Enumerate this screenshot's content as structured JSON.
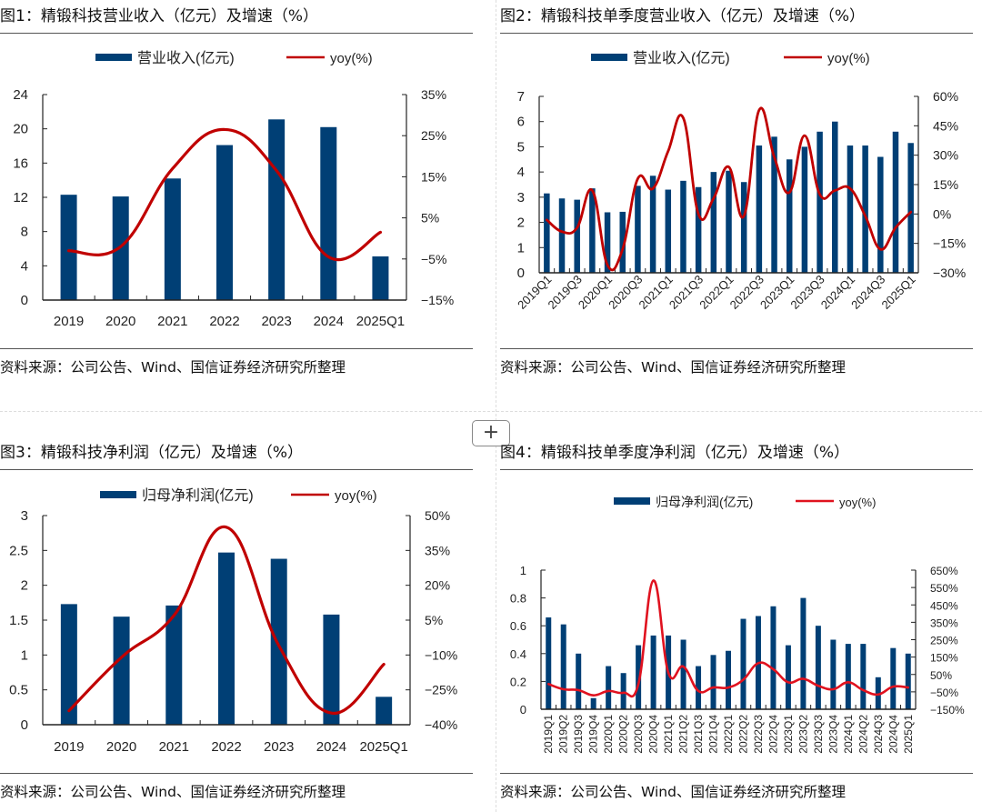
{
  "source_note": "资料来源：公司公告、Wind、国信证券经济研究所整理",
  "add_button_label": "+",
  "colors": {
    "bar": "#003f75",
    "line": "#c00000",
    "line_alt": "#e0121f",
    "axis": "#222222"
  },
  "chart_data": [
    {
      "id": "fig1",
      "type": "bar+line",
      "title": "图1：精锻科技营业收入（亿元）及增速（%）",
      "legend": [
        "营业收入(亿元)",
        "yoy(%)"
      ],
      "legend_position": "top-center",
      "categories": [
        "2019",
        "2020",
        "2021",
        "2022",
        "2023",
        "2024",
        "2025Q1"
      ],
      "series": [
        {
          "name": "营业收入(亿元)",
          "axis": "left",
          "type": "bar",
          "values": [
            12.3,
            12.1,
            14.2,
            18.1,
            21.1,
            20.2,
            5.1
          ]
        },
        {
          "name": "yoy(%)",
          "axis": "right",
          "type": "line",
          "values": [
            -3.0,
            -2.0,
            17.0,
            26.5,
            16.5,
            -4.5,
            1.5
          ]
        }
      ],
      "ylim_left": [
        0,
        24
      ],
      "yticks_left": [
        "0",
        "4",
        "8",
        "12",
        "16",
        "20",
        "24"
      ],
      "ylim_right": [
        -15,
        35
      ],
      "yticks_right": [
        "-15%",
        "-5%",
        "5%",
        "15%",
        "25%",
        "35%"
      ],
      "xlabel_rotation": "none"
    },
    {
      "id": "fig2",
      "type": "bar+line",
      "title": "图2：精锻科技单季度营业收入（亿元）及增速（%）",
      "legend": [
        "营业收入(亿元)",
        "yoy(%)"
      ],
      "legend_position": "top-center",
      "categories": [
        "2019Q1",
        "2019Q2",
        "2019Q3",
        "2019Q4",
        "2020Q1",
        "2020Q2",
        "2020Q3",
        "2020Q4",
        "2021Q1",
        "2021Q2",
        "2021Q3",
        "2021Q4",
        "2022Q1",
        "2022Q2",
        "2022Q3",
        "2022Q4",
        "2023Q1",
        "2023Q2",
        "2023Q3",
        "2023Q4",
        "2024Q1",
        "2024Q2",
        "2024Q3",
        "2024Q4",
        "2025Q1"
      ],
      "tick_labels": [
        "2019Q1",
        "2019Q3",
        "2020Q1",
        "2020Q3",
        "2021Q1",
        "2021Q3",
        "2022Q1",
        "2022Q3",
        "2023Q1",
        "2023Q3",
        "2024Q1",
        "2024Q3",
        "2025Q1"
      ],
      "series": [
        {
          "name": "营业收入(亿元)",
          "axis": "left",
          "type": "bar",
          "values": [
            3.15,
            2.95,
            2.9,
            3.35,
            2.4,
            2.42,
            3.45,
            3.85,
            3.3,
            3.65,
            3.4,
            4.0,
            4.05,
            3.6,
            5.05,
            5.4,
            4.5,
            5.0,
            5.6,
            6.0,
            5.05,
            5.05,
            4.6,
            5.6,
            5.15
          ]
        },
        {
          "name": "yoy(%)",
          "axis": "right",
          "type": "line",
          "values": [
            -3,
            -9,
            -7,
            12,
            -26,
            -18,
            18,
            13,
            32,
            49,
            0,
            8,
            24,
            -1,
            53,
            29,
            11,
            40,
            10,
            12,
            13,
            -1,
            -18,
            -7,
            1
          ]
        }
      ],
      "ylim_left": [
        0,
        7
      ],
      "yticks_left": [
        "0",
        "1",
        "2",
        "3",
        "4",
        "5",
        "6",
        "7"
      ],
      "ylim_right": [
        -30,
        60
      ],
      "yticks_right": [
        "-30%",
        "-15%",
        "0%",
        "15%",
        "30%",
        "45%",
        "60%"
      ],
      "xlabel_rotation": "-45deg"
    },
    {
      "id": "fig3",
      "type": "bar+line",
      "title": "图3：精锻科技净利润（亿元）及增速（%）",
      "legend": [
        "归母净利润(亿元)",
        "yoy(%)"
      ],
      "legend_position": "top-center",
      "categories": [
        "2019",
        "2020",
        "2021",
        "2022",
        "2023",
        "2024",
        "2025Q1"
      ],
      "series": [
        {
          "name": "归母净利润(亿元)",
          "axis": "left",
          "type": "bar",
          "values": [
            1.73,
            1.55,
            1.71,
            2.47,
            2.38,
            1.58,
            0.4
          ]
        },
        {
          "name": "yoy(%)",
          "axis": "right",
          "type": "line",
          "values": [
            -34,
            -11,
            7,
            45,
            -6,
            -35,
            -14
          ]
        }
      ],
      "ylim_left": [
        0,
        3
      ],
      "yticks_left": [
        "0",
        "0.5",
        "1",
        "1.5",
        "2",
        "2.5",
        "3"
      ],
      "ylim_right": [
        -40,
        50
      ],
      "yticks_right": [
        "-40%",
        "-25%",
        "-10%",
        "5%",
        "20%",
        "35%",
        "50%"
      ],
      "xlabel_rotation": "none"
    },
    {
      "id": "fig4",
      "type": "bar+line",
      "title": "图4：精锻科技单季度净利润（亿元）及增速（%）",
      "legend": [
        "归母净利润(亿元)",
        "yoy(%)"
      ],
      "legend_position": "top-center",
      "categories": [
        "2019Q1",
        "2019Q2",
        "2019Q3",
        "2019Q4",
        "2020Q1",
        "2020Q2",
        "2020Q3",
        "2020Q4",
        "2021Q1",
        "2021Q2",
        "2021Q3",
        "2021Q4",
        "2022Q1",
        "2022Q2",
        "2022Q3",
        "2022Q4",
        "2023Q1",
        "2023Q2",
        "2023Q3",
        "2023Q4",
        "2024Q1",
        "2024Q2",
        "2024Q3",
        "2024Q4",
        "2025Q1"
      ],
      "tick_labels": [
        "2019Q1",
        "2019Q2",
        "2019Q3",
        "2019Q4",
        "2020Q1",
        "2020Q2",
        "2020Q3",
        "2020Q4",
        "2021Q1",
        "2021Q2",
        "2021Q3",
        "2021Q4",
        "2022Q1",
        "2022Q2",
        "2022Q3",
        "2022Q4",
        "2023Q1",
        "2023Q2",
        "2023Q3",
        "2023Q4",
        "2024Q1",
        "2024Q2",
        "2024Q3",
        "2024Q4",
        "2025Q1"
      ],
      "series": [
        {
          "name": "归母净利润(亿元)",
          "axis": "left",
          "type": "bar",
          "values": [
            0.66,
            0.61,
            0.4,
            0.08,
            0.31,
            0.26,
            0.46,
            0.53,
            0.53,
            0.5,
            0.31,
            0.39,
            0.42,
            0.65,
            0.67,
            0.74,
            0.46,
            0.8,
            0.6,
            0.5,
            0.47,
            0.47,
            0.23,
            0.44,
            0.4
          ]
        },
        {
          "name": "yoy(%)",
          "axis": "right",
          "type": "line",
          "values": [
            -5,
            -35,
            -40,
            -70,
            -45,
            -55,
            -5,
            590,
            60,
            95,
            -45,
            -25,
            -25,
            20,
            115,
            80,
            5,
            25,
            -15,
            -35,
            5,
            -40,
            -65,
            -20,
            -25
          ]
        }
      ],
      "ylim_left": [
        0,
        1
      ],
      "yticks_left": [
        "0",
        "0.2",
        "0.4",
        "0.6",
        "0.8",
        "1"
      ],
      "ylim_right": [
        -150,
        650
      ],
      "yticks_right": [
        "-150%",
        "-50%",
        "50%",
        "150%",
        "250%",
        "350%",
        "450%",
        "550%",
        "650%"
      ],
      "xlabel_rotation": "-90deg"
    }
  ]
}
